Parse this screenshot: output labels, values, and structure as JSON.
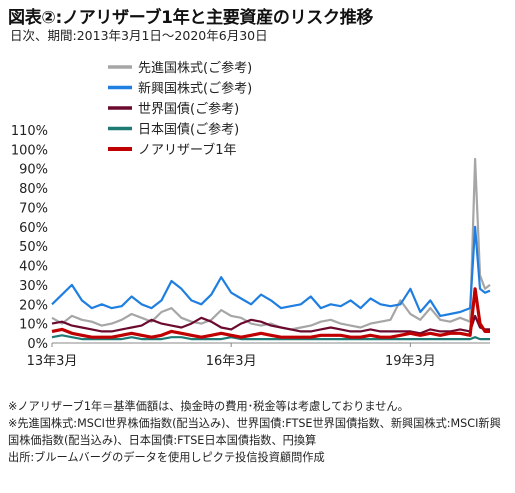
{
  "header": {
    "title": "図表②:ノアリザーブ1年と主要資産のリスク推移",
    "subtitle": "日次、期間:2013年3月1日～2020年6月30日"
  },
  "chart_data": {
    "type": "line",
    "ylim": [
      0,
      110
    ],
    "y_ticks": [
      "0%",
      "10%",
      "20%",
      "30%",
      "40%",
      "50%",
      "60%",
      "70%",
      "80%",
      "90%",
      "100%",
      "110%"
    ],
    "x_ticks": [
      "13年3月",
      "16年3月",
      "19年3月"
    ],
    "x_tick_positions": [
      0,
      36,
      72
    ],
    "x_range": [
      0,
      88
    ],
    "grid": false,
    "legend_placement": "top-left",
    "series": [
      {
        "name": "先進国株式(ご参考)",
        "color": "#a6a6a6",
        "x": [
          0,
          2,
          4,
          6,
          8,
          10,
          12,
          14,
          16,
          18,
          20,
          22,
          24,
          26,
          28,
          30,
          32,
          34,
          36,
          38,
          40,
          42,
          44,
          46,
          48,
          50,
          52,
          54,
          56,
          58,
          60,
          62,
          64,
          66,
          68,
          70,
          72,
          74,
          76,
          78,
          80,
          82,
          84,
          85,
          86,
          87,
          88
        ],
        "values": [
          13,
          10,
          14,
          12,
          11,
          9,
          10,
          12,
          15,
          13,
          11,
          16,
          18,
          13,
          11,
          10,
          12,
          17,
          14,
          13,
          10,
          9,
          10,
          8,
          7,
          8,
          9,
          11,
          12,
          10,
          9,
          8,
          10,
          11,
          12,
          22,
          15,
          12,
          18,
          12,
          11,
          13,
          11,
          95,
          35,
          28,
          30
        ]
      },
      {
        "name": "新興国株式(ご参考)",
        "color": "#1f7fe0",
        "x": [
          0,
          2,
          4,
          6,
          8,
          10,
          12,
          14,
          16,
          18,
          20,
          22,
          24,
          26,
          28,
          30,
          32,
          34,
          36,
          38,
          40,
          42,
          44,
          46,
          48,
          50,
          52,
          54,
          56,
          58,
          60,
          62,
          64,
          66,
          68,
          70,
          72,
          74,
          76,
          78,
          80,
          82,
          84,
          85,
          86,
          87,
          88
        ],
        "values": [
          20,
          25,
          30,
          22,
          18,
          20,
          18,
          19,
          24,
          20,
          18,
          22,
          32,
          28,
          22,
          20,
          25,
          34,
          26,
          23,
          20,
          25,
          22,
          18,
          19,
          20,
          24,
          18,
          20,
          19,
          22,
          18,
          23,
          20,
          19,
          20,
          28,
          16,
          22,
          14,
          15,
          16,
          18,
          60,
          28,
          26,
          27
        ]
      },
      {
        "name": "世界国債(ご参考)",
        "color": "#6b0a2e",
        "x": [
          0,
          2,
          4,
          6,
          8,
          10,
          12,
          14,
          16,
          18,
          20,
          22,
          24,
          26,
          28,
          30,
          32,
          34,
          36,
          38,
          40,
          42,
          44,
          46,
          48,
          50,
          52,
          54,
          56,
          58,
          60,
          62,
          64,
          66,
          68,
          70,
          72,
          74,
          76,
          78,
          80,
          82,
          84,
          85,
          86,
          87,
          88
        ],
        "values": [
          10,
          11,
          9,
          8,
          7,
          6,
          6,
          7,
          8,
          9,
          12,
          10,
          9,
          8,
          10,
          13,
          11,
          8,
          7,
          10,
          12,
          11,
          9,
          8,
          7,
          6,
          6,
          7,
          8,
          7,
          6,
          6,
          7,
          6,
          6,
          6,
          6,
          5,
          7,
          6,
          6,
          7,
          6,
          14,
          8,
          7,
          7
        ]
      },
      {
        "name": "日本国債(ご参考)",
        "color": "#1f7a74",
        "x": [
          0,
          2,
          4,
          6,
          8,
          10,
          12,
          14,
          16,
          18,
          20,
          22,
          24,
          26,
          28,
          30,
          32,
          34,
          36,
          38,
          40,
          42,
          44,
          46,
          48,
          50,
          52,
          54,
          56,
          58,
          60,
          62,
          64,
          66,
          68,
          70,
          72,
          74,
          76,
          78,
          80,
          82,
          84,
          85,
          86,
          87,
          88
        ],
        "values": [
          3,
          4,
          3,
          2,
          2,
          2,
          2,
          2,
          3,
          2,
          2,
          2,
          3,
          3,
          2,
          2,
          2,
          2,
          3,
          2,
          2,
          2,
          2,
          2,
          2,
          2,
          2,
          2,
          2,
          2,
          2,
          2,
          2,
          2,
          2,
          2,
          2,
          2,
          2,
          2,
          2,
          2,
          2,
          3,
          2,
          2,
          2
        ]
      },
      {
        "name": "ノアリザーブ1年",
        "color": "#c00000",
        "x": [
          0,
          2,
          4,
          6,
          8,
          10,
          12,
          14,
          16,
          18,
          20,
          22,
          24,
          26,
          28,
          30,
          32,
          34,
          36,
          38,
          40,
          42,
          44,
          46,
          48,
          50,
          52,
          54,
          56,
          58,
          60,
          62,
          64,
          66,
          68,
          70,
          72,
          74,
          76,
          78,
          80,
          82,
          84,
          85,
          86,
          87,
          88
        ],
        "values": [
          6,
          7,
          5,
          4,
          3,
          3,
          3,
          4,
          5,
          4,
          3,
          4,
          6,
          5,
          4,
          3,
          4,
          5,
          4,
          3,
          4,
          5,
          4,
          3,
          3,
          3,
          3,
          4,
          4,
          4,
          3,
          3,
          4,
          3,
          3,
          4,
          5,
          4,
          5,
          4,
          5,
          5,
          4,
          28,
          10,
          6,
          6
        ]
      }
    ]
  },
  "notes": [
    "※ノアリザーブ1年＝基準価額は、換金時の費用･税金等は考慮しておりません。",
    "※先進国株式:MSCI世界株価指数(配当込み)、世界国債:FTSE世界国債指数、新興国株式:MSCI新興国株価指数(配当込み)、日本国債:FTSE日本国債指数、円換算",
    "出所:ブルームバーグのデータを使用しピクテ投信投資顧問作成"
  ]
}
